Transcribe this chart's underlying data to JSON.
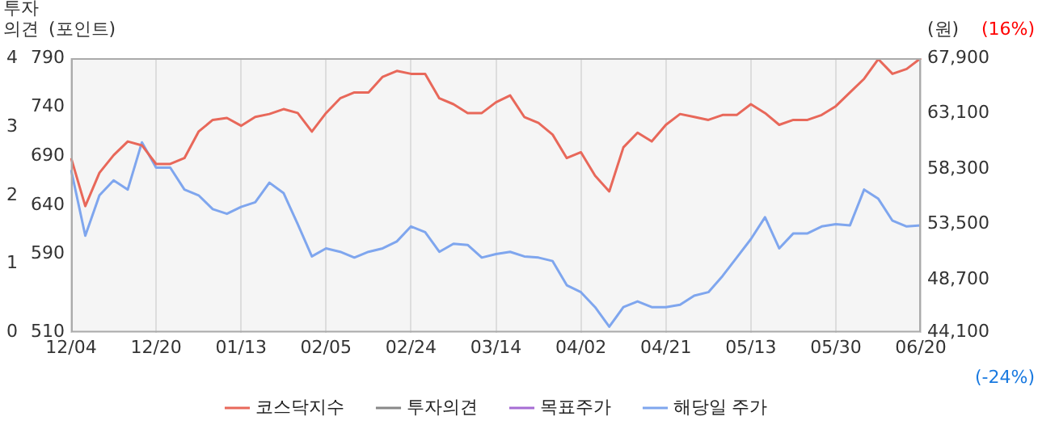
{
  "chart_data": {
    "type": "line",
    "ylabel": "(포인트)",
    "y2label": "(원)",
    "y3label": "투자\n의견",
    "categories": [
      "12/04",
      null,
      null,
      null,
      null,
      null,
      "12/20",
      null,
      null,
      null,
      null,
      null,
      "01/13",
      null,
      null,
      null,
      null,
      null,
      "02/05",
      null,
      null,
      null,
      null,
      null,
      "02/24",
      null,
      null,
      null,
      null,
      null,
      "03/14",
      null,
      null,
      null,
      null,
      null,
      "04/02",
      null,
      null,
      null,
      null,
      null,
      "04/21",
      null,
      null,
      null,
      null,
      null,
      "05/13",
      null,
      null,
      null,
      null,
      null,
      "05/30",
      null,
      null,
      null,
      null,
      null,
      "06/20"
    ],
    "series": [
      {
        "name": "코스닥지수",
        "color": "#e8685a",
        "values": [
          688,
          639,
          673,
          691,
          705,
          701,
          682,
          682,
          688,
          715,
          727,
          729,
          721,
          730,
          733,
          738,
          734,
          715,
          734,
          749,
          755,
          755,
          771,
          777,
          774,
          774,
          749,
          743,
          734,
          734,
          745,
          752,
          730,
          724,
          712,
          688,
          694,
          670,
          654,
          699,
          714,
          705,
          722,
          733,
          730,
          727,
          732,
          732,
          743,
          734,
          722,
          727,
          727,
          732,
          741,
          755,
          769,
          789,
          774,
          779,
          790
        ]
      },
      {
        "name": "투자의견",
        "color": "#888888",
        "axis": "y3",
        "values": [
          null,
          null,
          null,
          null,
          null,
          null,
          null,
          null,
          null,
          null,
          null,
          null,
          null,
          null,
          null,
          null,
          null,
          null,
          null,
          null,
          null,
          null,
          null,
          null,
          null,
          null,
          null,
          null,
          null,
          null,
          null,
          null,
          null,
          null,
          null,
          null,
          null,
          null,
          null,
          null,
          null,
          null,
          null,
          null,
          null,
          null,
          null,
          null,
          null,
          null,
          null,
          null,
          null,
          null,
          null,
          null,
          null,
          null,
          null,
          null,
          null
        ]
      },
      {
        "name": "목표주가",
        "color": "#a66dd4",
        "axis": "y2",
        "values": [
          null,
          null,
          null,
          null,
          null,
          null,
          null,
          null,
          null,
          null,
          null,
          null,
          null,
          null,
          null,
          null,
          null,
          null,
          null,
          null,
          null,
          null,
          null,
          null,
          null,
          null,
          null,
          null,
          null,
          null,
          null,
          null,
          null,
          null,
          null,
          null,
          null,
          null,
          null,
          null,
          null,
          null,
          null,
          null,
          null,
          null,
          null,
          null,
          null,
          null,
          null,
          null,
          null,
          null,
          null,
          null,
          null,
          null,
          null,
          null,
          null
        ]
      },
      {
        "name": "해당일 주가",
        "color": "#7fa6ee",
        "axis": "y2",
        "values": [
          58200,
          52500,
          56000,
          57300,
          56500,
          60600,
          58400,
          58400,
          56500,
          56000,
          54800,
          54400,
          55000,
          55400,
          57100,
          56200,
          53500,
          50700,
          51400,
          51100,
          50600,
          51100,
          51400,
          52000,
          53300,
          52800,
          51100,
          51800,
          51700,
          50600,
          50900,
          51100,
          50700,
          50600,
          50300,
          48200,
          47600,
          46300,
          44600,
          46300,
          46800,
          46300,
          46300,
          46500,
          47300,
          47600,
          49000,
          50600,
          52200,
          54100,
          51400,
          52700,
          52700,
          53300,
          53500,
          53400,
          56500,
          55700,
          53800,
          53300,
          53400
        ]
      }
    ],
    "ylim": [
      510,
      790
    ],
    "yticks": [
      510,
      590,
      640,
      690,
      740,
      790
    ],
    "y2lim": [
      44100,
      67900
    ],
    "y2ticks": [
      {
        "value": 44100,
        "label": "44,100"
      },
      {
        "value": 48700,
        "label": "48,700"
      },
      {
        "value": 53500,
        "label": "53,500"
      },
      {
        "value": 58300,
        "label": "58,300"
      },
      {
        "value": 63100,
        "label": "63,100"
      },
      {
        "value": 67900,
        "label": "67,900"
      }
    ],
    "y3lim": [
      0,
      4
    ],
    "y3ticks": [
      0,
      1,
      2,
      3,
      4
    ],
    "annotations": [
      "(16%)",
      "(-24%)"
    ],
    "grid": "x",
    "legend": "bottom",
    "marker": "none",
    "line_style": "solid"
  }
}
